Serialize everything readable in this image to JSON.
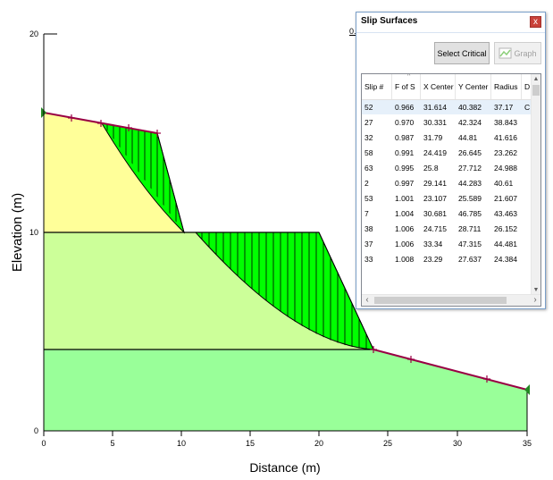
{
  "plot": {
    "xlabel": "Distance (m)",
    "ylabel": "Elevation (m)",
    "x_ticks": [
      "0",
      "5",
      "10",
      "15",
      "20",
      "25",
      "30",
      "35"
    ],
    "y_ticks": [
      "0",
      "10",
      "20"
    ],
    "colors": {
      "upper_soil": "#ffff99",
      "middle_soil": "#ccff99",
      "bottom_soil": "#99ff99",
      "slip_mass": "#00ff00",
      "ground_line": "#990044"
    },
    "obscured_label": "0.9"
  },
  "dialog": {
    "title": "Slip Surfaces",
    "close_label": "x",
    "select_critical_label": "Select Critical",
    "graph_label": "Graph",
    "columns": [
      "Slip #",
      "F of S",
      "X Center",
      "Y Center",
      "Radius",
      "D"
    ],
    "rows": [
      [
        "52",
        "0.966",
        "31.614",
        "40.382",
        "37.17",
        "C"
      ],
      [
        "27",
        "0.970",
        "30.331",
        "42.324",
        "38.843",
        ""
      ],
      [
        "32",
        "0.987",
        "31.79",
        "44.81",
        "41.616",
        ""
      ],
      [
        "58",
        "0.991",
        "24.419",
        "26.645",
        "23.262",
        ""
      ],
      [
        "63",
        "0.995",
        "25.8",
        "27.712",
        "24.988",
        ""
      ],
      [
        "2",
        "0.997",
        "29.141",
        "44.283",
        "40.61",
        ""
      ],
      [
        "53",
        "1.001",
        "23.107",
        "25.589",
        "21.607",
        ""
      ],
      [
        "7",
        "1.004",
        "30.681",
        "46.785",
        "43.463",
        ""
      ],
      [
        "38",
        "1.006",
        "24.715",
        "28.711",
        "26.152",
        ""
      ],
      [
        "37",
        "1.006",
        "33.34",
        "47.315",
        "44.481",
        ""
      ],
      [
        "33",
        "1.008",
        "23.29",
        "27.637",
        "24.384",
        ""
      ]
    ]
  }
}
